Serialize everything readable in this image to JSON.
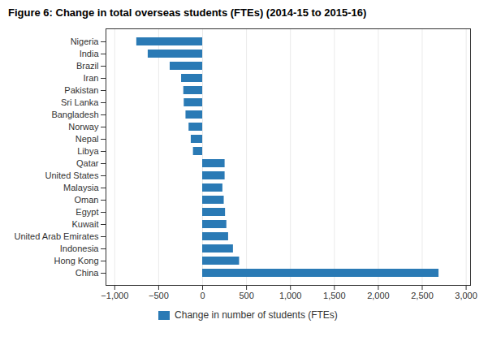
{
  "chart_data": {
    "type": "bar",
    "orientation": "horizontal",
    "title": "Figure 6: Change in total overseas students (FTEs) (2014-15 to 2015-16)",
    "categories": [
      "China",
      "Hong Kong",
      "Indonesia",
      "United Arab Emirates",
      "Kuwait",
      "Egypt",
      "Oman",
      "Malaysia",
      "United States",
      "Qatar",
      "Libya",
      "Nepal",
      "Norway",
      "Bangladesh",
      "Sri Lanka",
      "Pakistan",
      "Iran",
      "Brazil",
      "India",
      "Nigeria"
    ],
    "series": [
      {
        "name": "Change in number of students (FTEs)",
        "color": "#2a7ab5",
        "values": [
          2690,
          420,
          350,
          295,
          275,
          260,
          245,
          230,
          255,
          255,
          -105,
          -130,
          -155,
          -190,
          -210,
          -215,
          -240,
          -370,
          -620,
          -750
        ]
      }
    ],
    "xlim": [
      -1100,
      3050
    ],
    "xticks": [
      {
        "value": -1000,
        "label": "−1,000"
      },
      {
        "value": -500,
        "label": "−500"
      },
      0,
      500,
      {
        "value": 1000,
        "label": "1,000"
      },
      {
        "value": 1500,
        "label": "1,500"
      },
      {
        "value": 2000,
        "label": "2,000"
      },
      {
        "value": 2500,
        "label": "2,500"
      },
      {
        "value": 3000,
        "label": "3,000"
      }
    ],
    "grid": true,
    "legend": "bottom"
  }
}
